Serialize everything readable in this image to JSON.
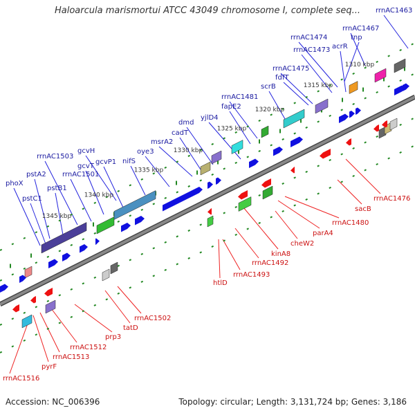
{
  "title": "Haloarcula marismortui ATCC 43049 chromosome I, complete seq...",
  "footer": {
    "accession": "Accession: NC_006396",
    "summary": "Topology: circular; Length: 3,131,724 bp; Genes: 3,186"
  },
  "colors": {
    "backbone": "#888888",
    "backbone_edge": "#444444",
    "tick": "#228822",
    "upper_label": "#1a1aa0",
    "lower_label": "#cc1111",
    "upper_line": "#2222dd",
    "lower_line": "#ee2222",
    "forward_gene": "#1010e0",
    "reverse_gene": "#ee1111"
  },
  "scale_labels": [
    "1310 kbp",
    "1315 kbp",
    "1320 kbp",
    "1325 kbp",
    "1330 kbp",
    "1335 kbp",
    "1340 kbp",
    "1345 kbp"
  ],
  "upper_labels": [
    "rrnAC1463",
    "rrnAC1467",
    "tnp",
    "rrnAC1474",
    "acrR",
    "rrnAC1473",
    "rrnAC1475",
    "fdfT",
    "scrB",
    "rrnAC1481",
    "fapE2",
    "yjlD4",
    "dmd",
    "cadT",
    "msrA2",
    "oye3",
    "nifS",
    "gcvH",
    "gcvP1",
    "gcvT",
    "rrnAC1503",
    "rrnAC1501",
    "pstA2",
    "pstB1",
    "phoX",
    "pstC1"
  ],
  "lower_labels": [
    "rrnAC1476",
    "sacB",
    "rrnAC1480",
    "parA4",
    "cheW2",
    "kinA8",
    "rrnAC1492",
    "rrnAC1493",
    "htlD",
    "rrnAC1502",
    "tatD",
    "prp3",
    "rrnAC1512",
    "rrnAC1513",
    "pyrF",
    "rrnAC1516"
  ]
}
